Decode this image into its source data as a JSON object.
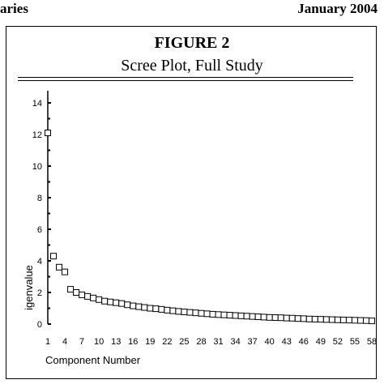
{
  "header": {
    "left_text": "aries",
    "right_text": "January 2004"
  },
  "figure": {
    "label": "FIGURE 2",
    "caption": "Scree Plot, Full Study"
  },
  "chart_data": {
    "type": "scatter",
    "title": "",
    "xlabel": "Component Number",
    "ylabel": "igenvalue",
    "xlim": [
      1,
      58
    ],
    "ylim": [
      0,
      14
    ],
    "yticks": [
      0,
      2,
      4,
      6,
      8,
      10,
      12,
      14
    ],
    "xticks": [
      1,
      4,
      7,
      10,
      13,
      16,
      19,
      22,
      25,
      28,
      31,
      34,
      37,
      40,
      43,
      46,
      49,
      52,
      55,
      58
    ],
    "grid": false,
    "marker": "open-square",
    "x": [
      1,
      2,
      3,
      4,
      5,
      6,
      7,
      8,
      9,
      10,
      11,
      12,
      13,
      14,
      15,
      16,
      17,
      18,
      19,
      20,
      21,
      22,
      23,
      24,
      25,
      26,
      27,
      28,
      29,
      30,
      31,
      32,
      33,
      34,
      35,
      36,
      37,
      38,
      39,
      40,
      41,
      42,
      43,
      44,
      45,
      46,
      47,
      48,
      49,
      50,
      51,
      52,
      53,
      54,
      55,
      56,
      57,
      58
    ],
    "y": [
      12.1,
      4.3,
      3.6,
      3.3,
      2.2,
      2.0,
      1.85,
      1.75,
      1.65,
      1.55,
      1.45,
      1.4,
      1.35,
      1.3,
      1.22,
      1.15,
      1.1,
      1.05,
      1.0,
      0.97,
      0.93,
      0.88,
      0.84,
      0.8,
      0.77,
      0.74,
      0.71,
      0.68,
      0.65,
      0.62,
      0.6,
      0.58,
      0.56,
      0.54,
      0.52,
      0.5,
      0.48,
      0.46,
      0.44,
      0.42,
      0.41,
      0.4,
      0.38,
      0.37,
      0.35,
      0.34,
      0.32,
      0.31,
      0.3,
      0.29,
      0.28,
      0.27,
      0.26,
      0.25,
      0.24,
      0.23,
      0.22,
      0.2
    ]
  }
}
